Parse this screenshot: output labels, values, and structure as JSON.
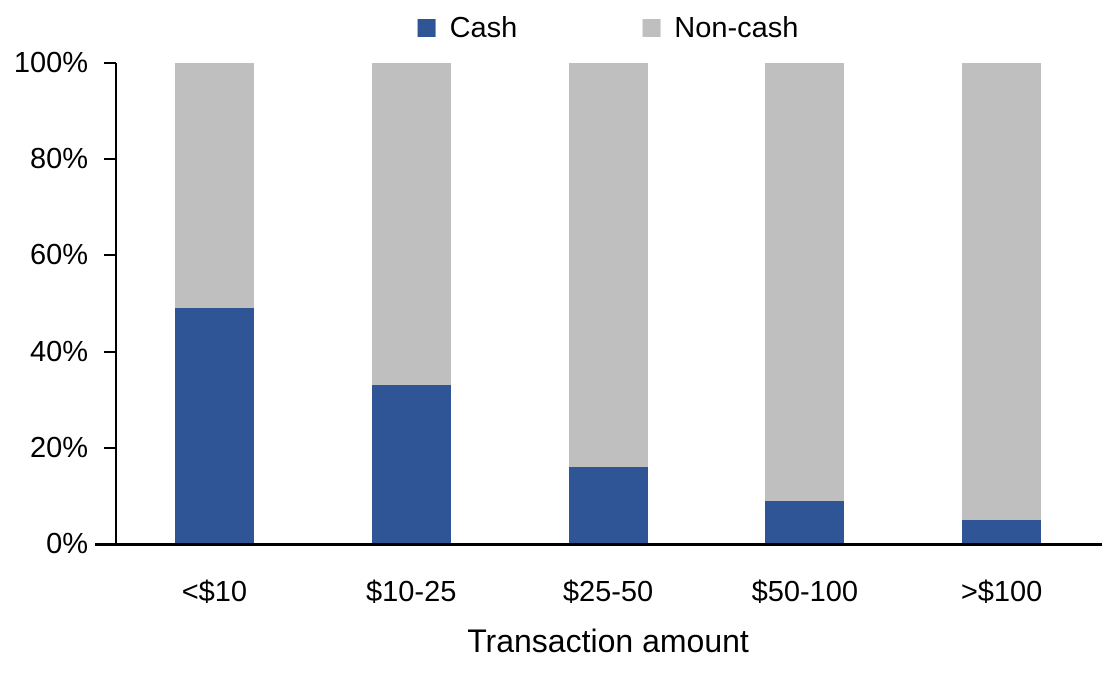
{
  "chart_data": {
    "type": "bar",
    "stacked": true,
    "title": "",
    "categories": [
      "<$10",
      "$10-25",
      "$25-50",
      "$50-100",
      ">$100"
    ],
    "series": [
      {
        "name": "Cash",
        "color": "#2F5597",
        "values": [
          49,
          33,
          16,
          9,
          5
        ]
      },
      {
        "name": "Non-cash",
        "color": "#BFBFBF",
        "values": [
          51,
          67,
          84,
          91,
          95
        ]
      }
    ],
    "xlabel": "Transaction amount",
    "ylabel": "",
    "ylim": [
      0,
      100
    ],
    "yticks": [
      "0%",
      "20%",
      "40%",
      "60%",
      "80%",
      "100%"
    ],
    "legend": [
      "Cash",
      "Non-cash"
    ],
    "legend_position": "top-center",
    "grid": false,
    "axis_color": "#000000",
    "text_color": "#000000",
    "background": "#FFFFFF"
  }
}
